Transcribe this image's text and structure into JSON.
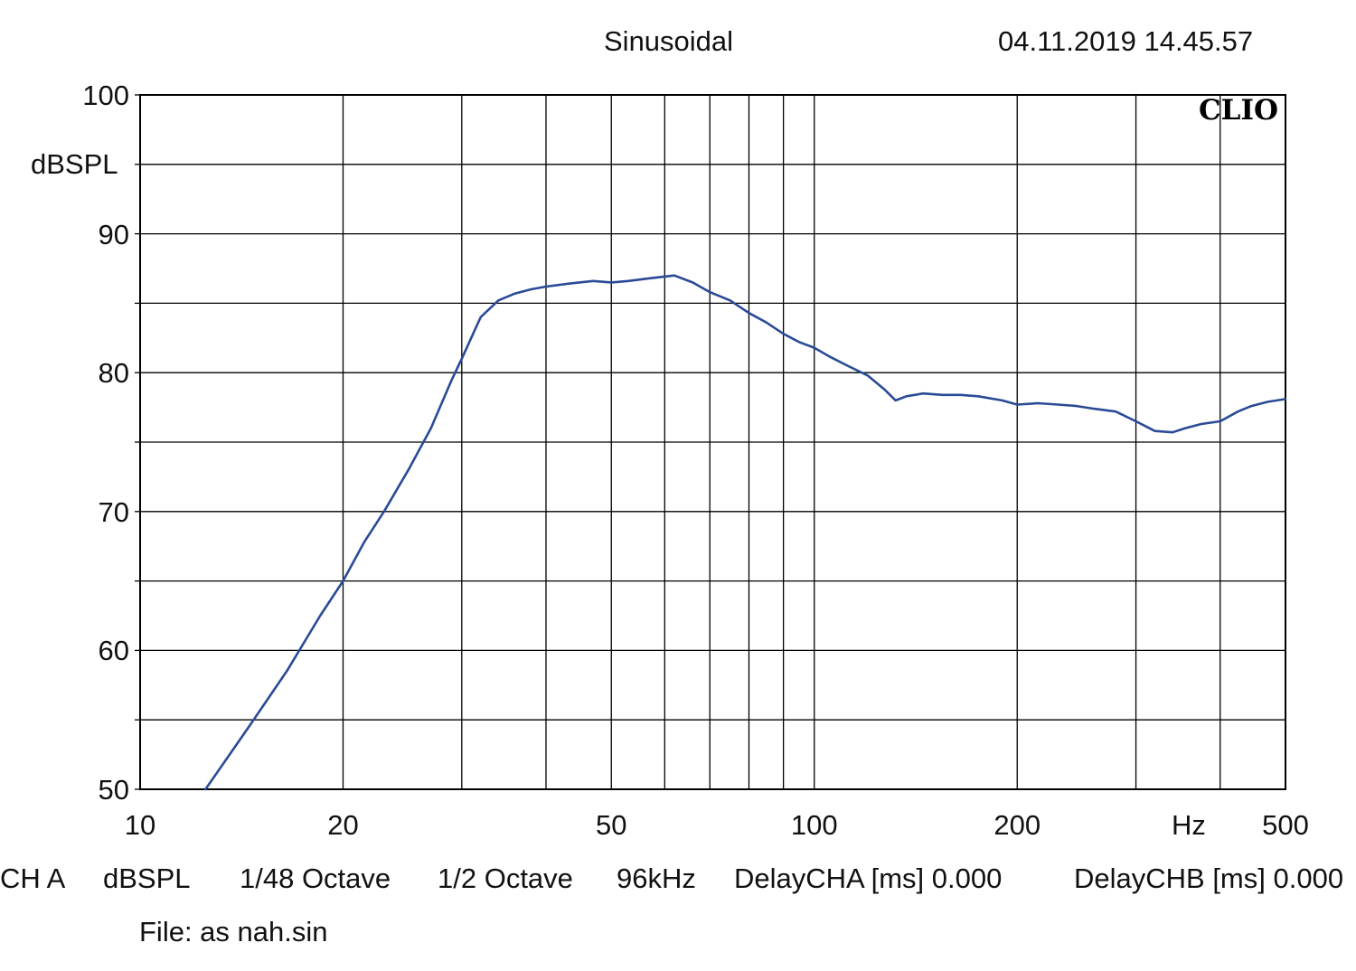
{
  "header": {
    "title": "Sinusoidal",
    "timestamp": "04.11.2019 14.45.57",
    "brand": "CLIO"
  },
  "status": {
    "channel": "CH A",
    "unit": "dBSPL",
    "resolution": "1/48 Octave",
    "smoothing": "1/2 Octave",
    "sample_rate": "96kHz",
    "delay_a": "DelayCHA [ms] 0.000",
    "delay_b": "DelayCHB [ms] 0.000"
  },
  "file": "File: as nah.sin",
  "colors": {
    "curve": "#2b4a96",
    "grid": "#000000"
  },
  "chart_data": {
    "type": "line",
    "title": "Sinusoidal",
    "xlabel": "Hz",
    "ylabel": "dBSPL",
    "xscale": "log",
    "xlim": [
      10,
      500
    ],
    "ylim": [
      50,
      100
    ],
    "grid": true,
    "x_ticks": [
      "10",
      "20",
      "50",
      "100",
      "200",
      "500"
    ],
    "y_ticks": [
      "50",
      "60",
      "70",
      "80",
      "90",
      "100"
    ],
    "series": [
      {
        "x": [
          12.5,
          14.5,
          16.5,
          18.5,
          20,
          21.5,
          23,
          25,
          27,
          29,
          30,
          32,
          34,
          36,
          38,
          40,
          43,
          47,
          50,
          53,
          57,
          62,
          66,
          70,
          75,
          80,
          85,
          90,
          95,
          100,
          105,
          112,
          120,
          127,
          132,
          137,
          145,
          155,
          165,
          175,
          190,
          200,
          215,
          230,
          245,
          260,
          280,
          300,
          320,
          340,
          355,
          375,
          400,
          425,
          445,
          470,
          500
        ],
        "y": [
          50.0,
          54.5,
          58.5,
          62.5,
          65.0,
          67.8,
          70.0,
          73.0,
          76.0,
          79.5,
          81.0,
          84.0,
          85.2,
          85.7,
          86.0,
          86.2,
          86.4,
          86.6,
          86.5,
          86.6,
          86.8,
          87.0,
          86.5,
          85.8,
          85.2,
          84.3,
          83.6,
          82.8,
          82.2,
          81.8,
          81.2,
          80.5,
          79.8,
          78.8,
          78.0,
          78.3,
          78.5,
          78.4,
          78.4,
          78.3,
          78.0,
          77.7,
          77.8,
          77.7,
          77.6,
          77.4,
          77.2,
          76.5,
          75.8,
          75.7,
          76.0,
          76.3,
          76.5,
          77.2,
          77.6,
          77.9,
          78.1
        ]
      }
    ]
  }
}
